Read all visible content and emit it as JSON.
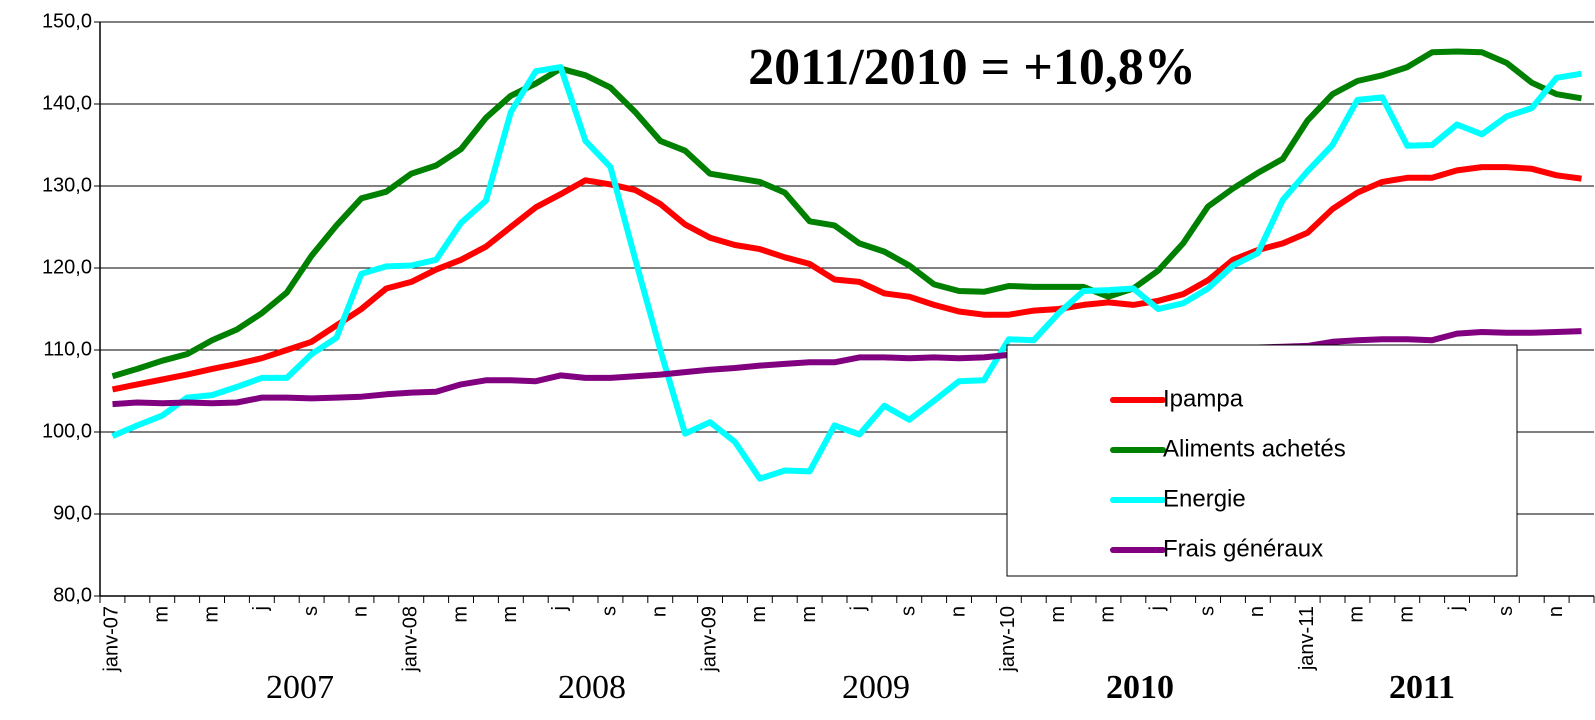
{
  "chart_data": {
    "type": "line",
    "annotation": "2011/2010 = +10,8%",
    "categories": [
      "janv-07",
      null,
      "m",
      null,
      "m",
      null,
      "j",
      null,
      "s",
      null,
      "n",
      null,
      "janv-08",
      null,
      "m",
      null,
      "m",
      null,
      "j",
      null,
      "s",
      null,
      "n",
      null,
      "janv-09",
      null,
      "m",
      null,
      "m",
      null,
      "j",
      null,
      "s",
      null,
      "n",
      null,
      "janv-10",
      null,
      "m",
      null,
      "m",
      null,
      "j",
      null,
      "s",
      null,
      "n",
      null,
      "janv-11",
      null,
      "m",
      null,
      "m",
      null,
      "j",
      null,
      "s",
      null,
      "n",
      null
    ],
    "year_labels": [
      {
        "text": "2007",
        "bold": false
      },
      {
        "text": "2008",
        "bold": false
      },
      {
        "text": "2009",
        "bold": false
      },
      {
        "text": "2010",
        "bold": true
      },
      {
        "text": "2011",
        "bold": true
      }
    ],
    "series": [
      {
        "name": "Ipampa",
        "color": "#ff0000",
        "values": [
          105.2,
          105.8,
          106.4,
          107,
          107.7,
          108.3,
          109,
          110,
          111,
          113,
          115,
          117.5,
          118.3,
          119.8,
          121,
          122.6,
          125,
          127.4,
          129,
          130.7,
          130.2,
          129.5,
          127.8,
          125.3,
          123.7,
          122.8,
          122.3,
          121.3,
          120.5,
          118.6,
          118.3,
          116.9,
          116.5,
          115.5,
          114.7,
          114.3,
          114.3,
          114.8,
          115,
          115.5,
          115.8,
          115.5,
          116,
          116.8,
          118.5,
          121,
          122.2,
          123,
          124.3,
          127.2,
          129.2,
          130.5,
          131,
          131,
          131.9,
          132.3,
          132.3,
          132.1,
          131.3,
          130.9
        ]
      },
      {
        "name": "Aliments achetés",
        "color": "#008000",
        "values": [
          106.8,
          107.7,
          108.7,
          109.5,
          111.2,
          112.5,
          114.5,
          117,
          121.5,
          125.2,
          128.5,
          129.3,
          131.5,
          132.5,
          134.5,
          138.3,
          141,
          142.5,
          144.3,
          143.5,
          142,
          139,
          135.5,
          134.3,
          131.5,
          131,
          130.5,
          129.2,
          125.7,
          125.2,
          123,
          122,
          120.3,
          118,
          117.2,
          117.1,
          117.8,
          117.7,
          117.7,
          117.7,
          116.5,
          117.5,
          119.7,
          123,
          127.5,
          129.7,
          131.6,
          133.3,
          138,
          141.2,
          142.8,
          143.5,
          144.5,
          146.3,
          146.4,
          146.3,
          145,
          142.6,
          141.2,
          140.7
        ]
      },
      {
        "name": "Energie",
        "color": "#00ffff",
        "values": [
          99.5,
          100.8,
          102,
          104.2,
          104.5,
          105.5,
          106.6,
          106.6,
          109.5,
          111.5,
          119.3,
          120.2,
          120.3,
          121,
          125.5,
          128.2,
          139,
          144,
          144.5,
          135.5,
          132.3,
          121,
          110,
          99.8,
          101.2,
          98.8,
          94.3,
          95.3,
          95.2,
          100.8,
          99.7,
          103.2,
          101.5,
          103.8,
          106.2,
          106.3,
          111.3,
          111.2,
          114.5,
          117.2,
          117.3,
          117.5,
          115,
          115.7,
          117.5,
          120.3,
          121.8,
          128.3,
          131.8,
          135,
          140.5,
          140.8,
          134.9,
          135,
          137.5,
          136.3,
          138.5,
          139.5,
          143.2,
          143.7
        ]
      },
      {
        "name": "Frais généraux",
        "color": "#800080",
        "values": [
          103.4,
          103.6,
          103.5,
          103.6,
          103.5,
          103.6,
          104.2,
          104.2,
          104.1,
          104.2,
          104.3,
          104.6,
          104.8,
          104.9,
          105.8,
          106.3,
          106.3,
          106.2,
          106.9,
          106.6,
          106.6,
          106.8,
          107,
          107.3,
          107.6,
          107.8,
          108.1,
          108.3,
          108.5,
          108.5,
          109.1,
          109.1,
          109,
          109.1,
          109,
          109.1,
          109.4,
          109.4,
          109.4,
          109.3,
          109.2,
          109.4,
          110.2,
          110.3,
          110.1,
          110.2,
          110.3,
          110.4,
          110.5,
          111,
          111.2,
          111.3,
          111.3,
          111.2,
          112,
          112.2,
          112.1,
          112.1,
          112.2,
          112.3
        ]
      }
    ],
    "ylim": [
      80,
      150
    ],
    "yticks": [
      {
        "value": 80,
        "label": "80,0"
      },
      {
        "value": 90,
        "label": "90,0"
      },
      {
        "value": 100,
        "label": "100,0"
      },
      {
        "value": 110,
        "label": "110,0"
      },
      {
        "value": 120,
        "label": "120,0"
      },
      {
        "value": 130,
        "label": "130,0"
      },
      {
        "value": 140,
        "label": "140,0"
      },
      {
        "value": 150,
        "label": "150,0"
      }
    ],
    "grid": true
  }
}
